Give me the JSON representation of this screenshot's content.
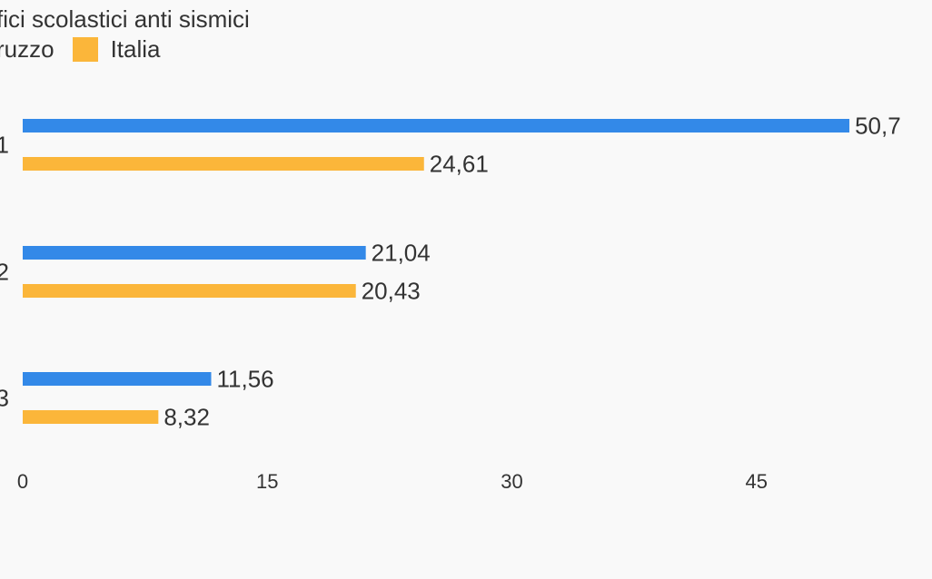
{
  "chart_data": {
    "type": "bar",
    "orientation": "horizontal",
    "title": "fici scolastici anti sismici",
    "categories": [
      "1",
      "2",
      "3"
    ],
    "series": [
      {
        "name": "ruzzo",
        "color": "#3389e8",
        "values": [
          50.7,
          21.04,
          11.56
        ],
        "labels": [
          "50,7",
          "21,04",
          "11,56"
        ]
      },
      {
        "name": "Italia",
        "color": "#fbb63a",
        "values": [
          24.61,
          20.43,
          8.32
        ],
        "labels": [
          "24,61",
          "20,43",
          "8,32"
        ]
      }
    ],
    "x_ticks": [
      0,
      15,
      30,
      45
    ],
    "xlim": [
      0,
      57
    ],
    "grid": false,
    "legend_position": "top-left"
  }
}
